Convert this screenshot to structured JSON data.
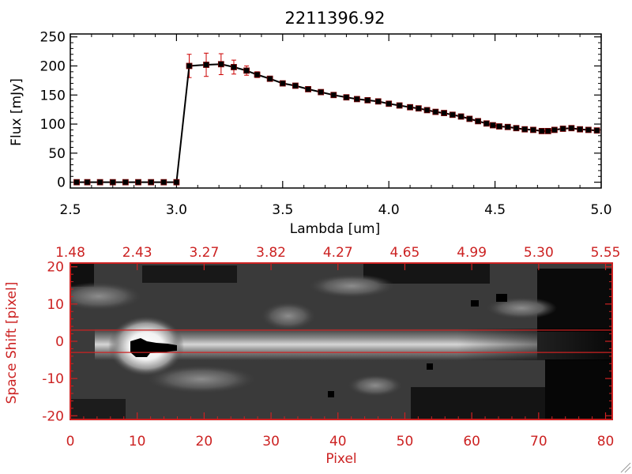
{
  "chart_data": [
    {
      "type": "line",
      "title": "2211396.92",
      "xlabel": "Lambda [um]",
      "ylabel": "Flux [mJy]",
      "xlim": [
        2.5,
        5.0
      ],
      "ylim": [
        -10,
        255
      ],
      "xticks": [
        "2.5",
        "3.0",
        "3.5",
        "4.0",
        "4.5",
        "5.0"
      ],
      "yticks": [
        "0",
        "50",
        "100",
        "150",
        "200",
        "250"
      ],
      "colors": {
        "line": "#000000",
        "marker": "#000000",
        "errorbar": "#cc0000",
        "axes": "#000000"
      },
      "grid": false,
      "legend": "none",
      "series": [
        {
          "x": [
            2.53,
            2.58,
            2.64,
            2.7,
            2.76,
            2.82,
            2.88,
            2.94,
            3.0,
            3.06,
            3.14,
            3.21,
            3.27,
            3.33,
            3.38,
            3.44,
            3.5,
            3.56,
            3.62,
            3.68,
            3.74,
            3.8,
            3.85,
            3.9,
            3.95,
            4.0,
            4.05,
            4.1,
            4.14,
            4.18,
            4.22,
            4.26,
            4.3,
            4.34,
            4.38,
            4.42,
            4.46,
            4.49,
            4.52,
            4.56,
            4.6,
            4.64,
            4.68,
            4.72,
            4.75,
            4.78,
            4.82,
            4.86,
            4.9,
            4.94,
            4.98
          ],
          "y": [
            0,
            0,
            0,
            0,
            0,
            0,
            0,
            0,
            0,
            200,
            202,
            203,
            198,
            192,
            185,
            178,
            170,
            166,
            160,
            155,
            150,
            146,
            143,
            141,
            139,
            135,
            132,
            129,
            127,
            124,
            121,
            119,
            116,
            113,
            109,
            105,
            101,
            98,
            96,
            95,
            93,
            91,
            90,
            88,
            88,
            90,
            92,
            93,
            91,
            90,
            89
          ],
          "yerr": [
            0,
            0,
            0,
            0,
            0,
            0,
            0,
            0,
            0,
            20,
            20,
            18,
            12,
            8,
            5,
            4,
            3,
            3,
            2,
            2,
            2,
            2,
            2,
            2,
            2,
            2,
            2,
            2,
            2,
            2,
            2,
            2,
            2,
            2,
            2,
            2,
            2,
            2,
            2,
            2,
            2,
            2,
            2,
            2,
            2,
            2,
            4,
            4,
            2,
            2,
            2
          ]
        }
      ]
    },
    {
      "type": "heatmap",
      "xlabel": "Pixel",
      "ylabel": "Space Shift [pixel]",
      "xlim": [
        0,
        81
      ],
      "ylim": [
        -21,
        21
      ],
      "xticks": [
        "0",
        "10",
        "20",
        "30",
        "40",
        "50",
        "60",
        "70",
        "80"
      ],
      "yticks": [
        "-20",
        "-10",
        "0",
        "10",
        "20"
      ],
      "top_ticks": [
        "1.48",
        "2.43",
        "3.27",
        "3.82",
        "4.27",
        "4.65",
        "4.99",
        "5.30",
        "5.55"
      ],
      "colormap": "grayscale",
      "colors": {
        "axes": "#cc2222",
        "lines": "#cc2222"
      },
      "hlines": [
        3,
        -3
      ],
      "features": [
        {
          "label": "spectral trace",
          "x_range": [
            5,
            72
          ],
          "y_center": 0,
          "y_halfwidth": 3.5
        },
        {
          "label": "bright source",
          "x": 11,
          "y": 0
        },
        {
          "label": "saturated core",
          "x_range": [
            10,
            16
          ],
          "y_range": [
            -1.5,
            1.5
          ]
        },
        {
          "label": "blob",
          "x": 5,
          "y": 12
        },
        {
          "label": "blob",
          "x": 33,
          "y": 6
        },
        {
          "label": "blob",
          "x": 46,
          "y": 15
        },
        {
          "label": "blob",
          "x": 47,
          "y": -10
        },
        {
          "label": "blob",
          "x": 68,
          "y": 10
        }
      ]
    }
  ]
}
